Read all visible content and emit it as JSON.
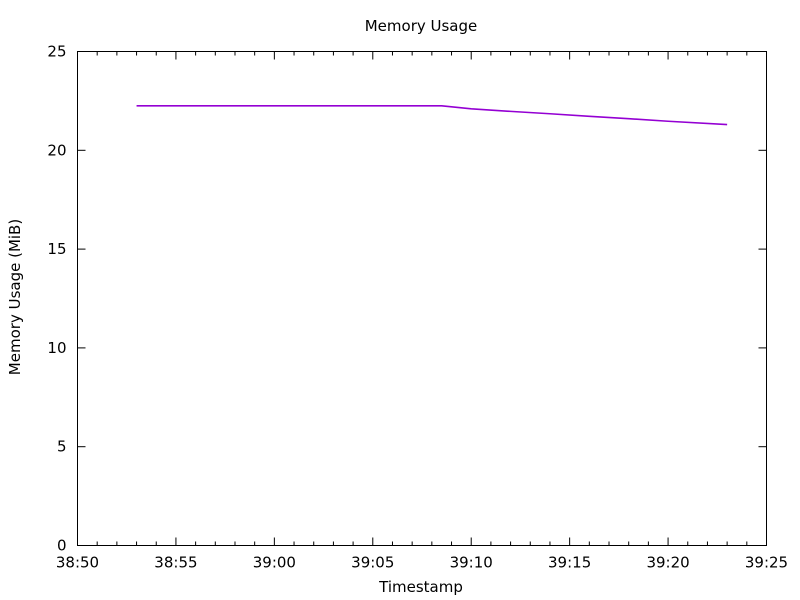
{
  "chart_data": {
    "type": "line",
    "title": "Memory Usage",
    "xlabel": "Timestamp",
    "ylabel": "Memory Usage (MiB)",
    "xlim": [
      "38:50",
      "39:25"
    ],
    "ylim": [
      0,
      25
    ],
    "x_ticks": [
      "38:50",
      "38:55",
      "39:00",
      "39:05",
      "39:10",
      "39:15",
      "39:20",
      "39:25"
    ],
    "y_ticks": [
      0,
      5,
      10,
      15,
      20,
      25
    ],
    "grid": false,
    "legend": "none",
    "series": [
      {
        "color": "#9400d3",
        "x": [
          "38:53",
          "38:56",
          "38:59",
          "39:02",
          "39:05",
          "39:08",
          "39:08.5",
          "39:10",
          "39:12",
          "39:14",
          "39:16",
          "39:18",
          "39:20",
          "39:23"
        ],
        "y": [
          22.25,
          22.25,
          22.25,
          22.25,
          22.25,
          22.25,
          22.25,
          22.1,
          21.97,
          21.85,
          21.72,
          21.6,
          21.47,
          21.3
        ]
      }
    ]
  }
}
